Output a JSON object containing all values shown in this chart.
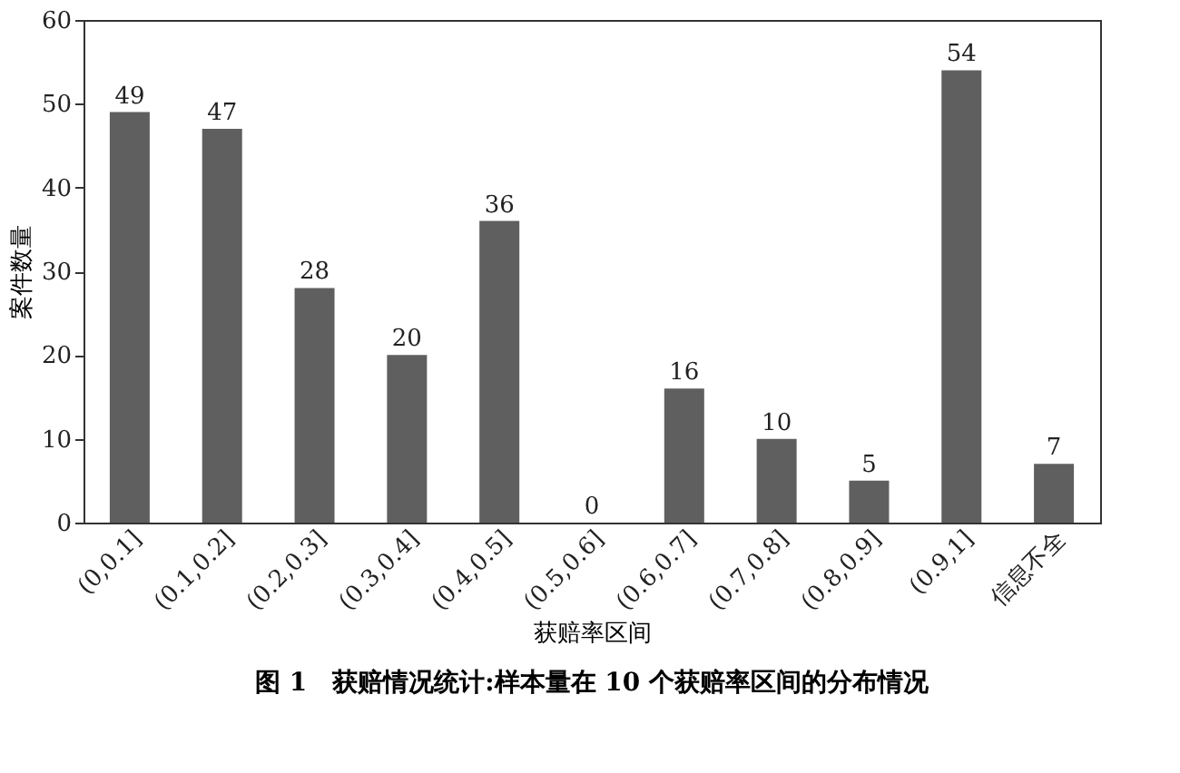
{
  "chart_data": {
    "type": "bar",
    "categories": [
      "(0,0.1]",
      "(0.1,0.2]",
      "(0.2,0.3]",
      "(0.3,0.4]",
      "(0.4,0.5]",
      "(0.5,0.6]",
      "(0.6,0.7]",
      "(0.7,0.8]",
      "(0.8,0.9]",
      "(0.9,1]",
      "信息不全"
    ],
    "values": [
      49,
      47,
      28,
      20,
      36,
      0,
      16,
      10,
      5,
      54,
      7
    ],
    "color": "#5f5f5f",
    "xlabel": "获赔率区间",
    "ylabel": "案件数量",
    "ylim": [
      0,
      60
    ],
    "yticks": [
      0,
      10,
      20,
      30,
      40,
      50,
      60
    ],
    "data_labels": true,
    "grid": false,
    "annotations": [
      "图 1　获赔情况统计:样本量在 10 个获赔率区间的分布情况"
    ]
  }
}
